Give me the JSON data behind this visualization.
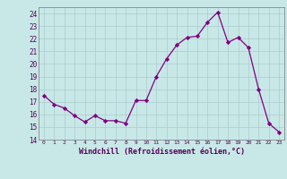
{
  "x": [
    0,
    1,
    2,
    3,
    4,
    5,
    6,
    7,
    8,
    9,
    10,
    11,
    12,
    13,
    14,
    15,
    16,
    17,
    18,
    19,
    20,
    21,
    22,
    23
  ],
  "y": [
    17.5,
    16.8,
    16.5,
    15.9,
    15.4,
    15.9,
    15.5,
    15.5,
    15.3,
    17.1,
    17.1,
    19.0,
    20.4,
    21.5,
    22.1,
    22.2,
    23.3,
    24.1,
    21.7,
    22.1,
    21.3,
    18.0,
    15.3,
    14.6
  ],
  "ylim": [
    14,
    24.5
  ],
  "yticks": [
    14,
    15,
    16,
    17,
    18,
    19,
    20,
    21,
    22,
    23,
    24
  ],
  "xticks": [
    0,
    1,
    2,
    3,
    4,
    5,
    6,
    7,
    8,
    9,
    10,
    11,
    12,
    13,
    14,
    15,
    16,
    17,
    18,
    19,
    20,
    21,
    22,
    23
  ],
  "xlabel": "Windchill (Refroidissement éolien,°C)",
  "line_color": "#800080",
  "marker": "D",
  "marker_size": 2.2,
  "bg_color": "#c8e8e8",
  "grid_color": "#aacccc",
  "axis_color": "#888888"
}
